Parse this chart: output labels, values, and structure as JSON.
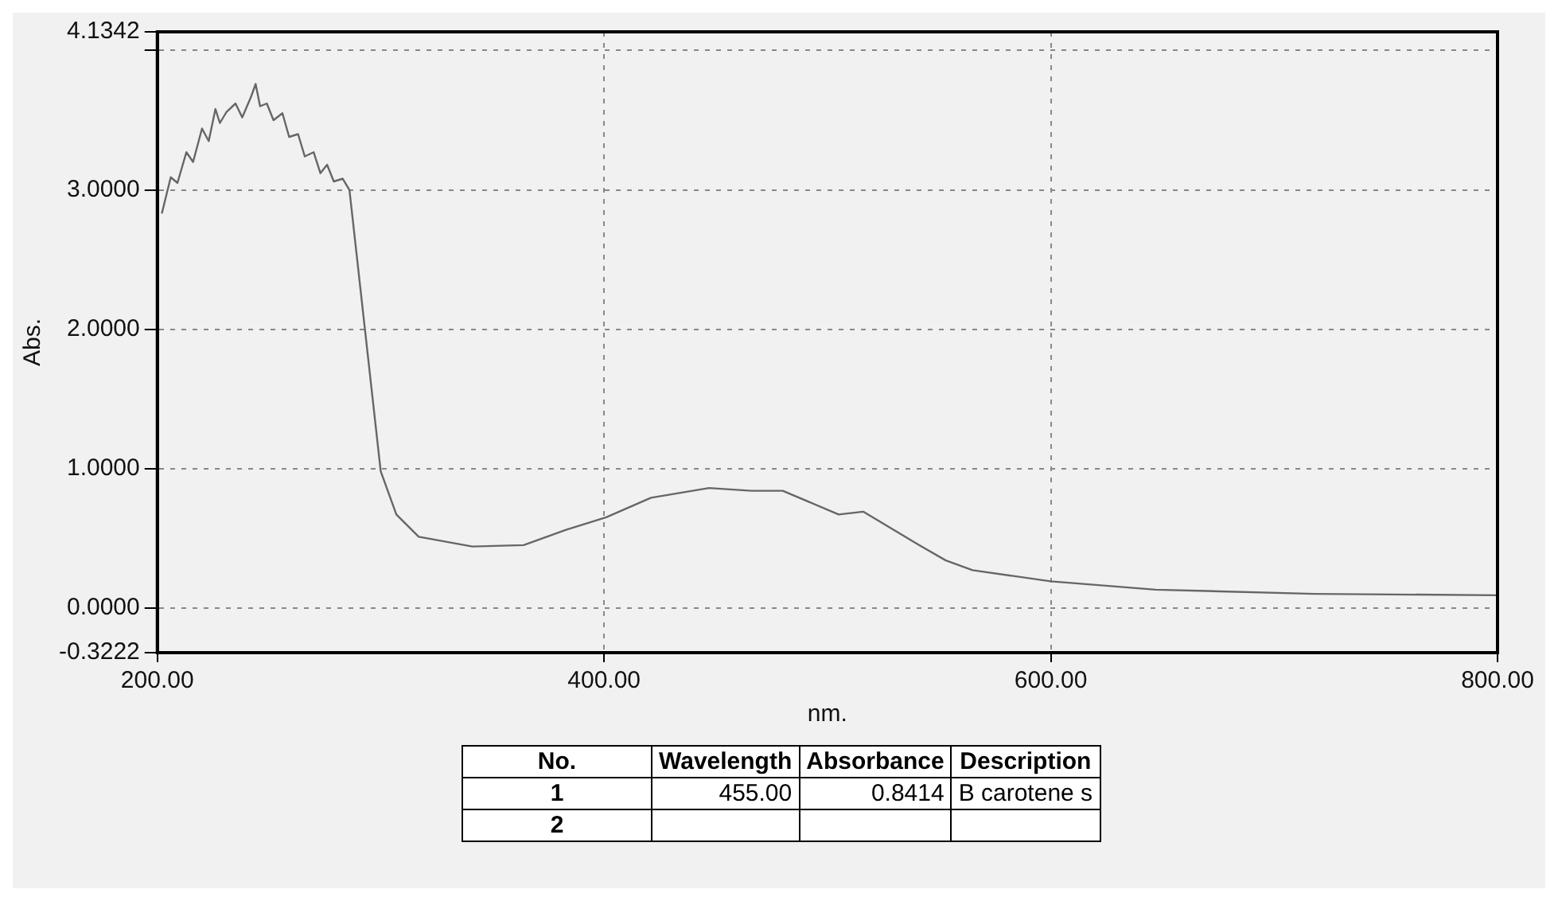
{
  "chart_data": {
    "type": "line",
    "xlabel": "nm.",
    "ylabel": "Abs.",
    "x": [
      202,
      206,
      209,
      213,
      216,
      220,
      223,
      226,
      228,
      231,
      235,
      238,
      242,
      244,
      246,
      249,
      252,
      256,
      259,
      263,
      266,
      270,
      273,
      276,
      279,
      283,
      286,
      293,
      300,
      307,
      317,
      341,
      364,
      383,
      401,
      421,
      447,
      466,
      480,
      505,
      516,
      541,
      553,
      565,
      600,
      647,
      718,
      800
    ],
    "series": [
      {
        "color": "#666666",
        "values": [
          2.83,
          3.09,
          3.05,
          3.27,
          3.2,
          3.44,
          3.35,
          3.58,
          3.48,
          3.56,
          3.62,
          3.52,
          3.67,
          3.76,
          3.6,
          3.62,
          3.5,
          3.55,
          3.38,
          3.4,
          3.24,
          3.27,
          3.12,
          3.18,
          3.06,
          3.08,
          3.0,
          1.99,
          0.98,
          0.67,
          0.51,
          0.44,
          0.45,
          0.56,
          0.65,
          0.79,
          0.86,
          0.84,
          0.84,
          0.67,
          0.69,
          0.45,
          0.34,
          0.27,
          0.19,
          0.13,
          0.1,
          0.09
        ]
      }
    ],
    "xlim": [
      200,
      800
    ],
    "xticks": [
      {
        "value": 200,
        "label": "200.00"
      },
      {
        "value": 400,
        "label": "400.00"
      },
      {
        "value": 600,
        "label": "600.00"
      },
      {
        "value": 800,
        "label": "800.00"
      }
    ],
    "ylim": [
      -0.3222,
      4.1342
    ],
    "yticks": [
      {
        "value": -0.3222,
        "label": "-0.3222"
      },
      {
        "value": 0,
        "label": "0.0000"
      },
      {
        "value": 1,
        "label": "1.0000"
      },
      {
        "value": 2,
        "label": "2.0000"
      },
      {
        "value": 3,
        "label": "3.0000"
      },
      {
        "value": 4,
        "label": null
      },
      {
        "value": 4.1342,
        "label": "4.1342"
      }
    ],
    "grid": true,
    "legend": false,
    "marker": "none",
    "line_style": "solid",
    "annotations": [
      "No.",
      "Wavelength",
      "Absorbance",
      "Description",
      "1",
      "455.00",
      "0.8414",
      "B carotene s",
      "2"
    ]
  }
}
